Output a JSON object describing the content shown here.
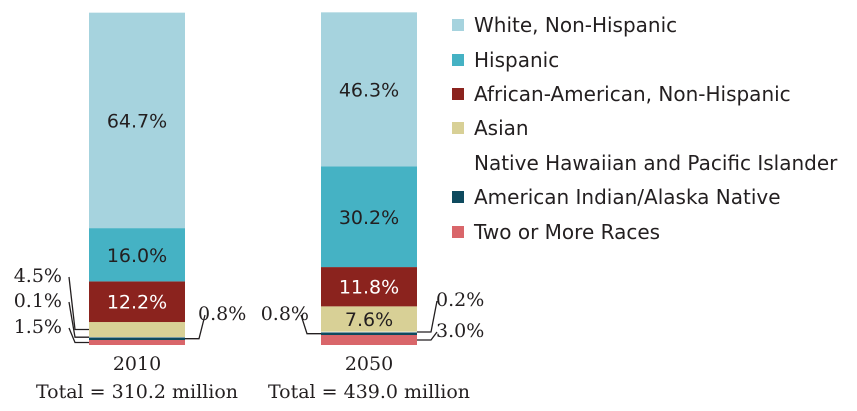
{
  "chart_data": {
    "type": "bar",
    "stacked": true,
    "categories": [
      "2010",
      "2050"
    ],
    "category_labels": [
      {
        "year": "2010",
        "total": "Total = 310.2 million"
      },
      {
        "year": "2050",
        "total": "Total = 439.0 million"
      }
    ],
    "ylim": [
      0,
      100
    ],
    "series": [
      {
        "name": "White, Non-Hispanic",
        "color": "#a6d3de",
        "values": [
          64.7,
          46.3
        ],
        "labels": [
          "64.7%",
          "46.3%"
        ]
      },
      {
        "name": "Hispanic",
        "color": "#45b2c4",
        "values": [
          16.0,
          30.2
        ],
        "labels": [
          "16.0%",
          "30.2%"
        ]
      },
      {
        "name": "African-American, Non-Hispanic",
        "color": "#8b231e",
        "values": [
          12.2,
          11.8
        ],
        "labels": [
          "12.2%",
          "11.8%"
        ]
      },
      {
        "name": "Asian",
        "color": "#d8d096",
        "values": [
          4.5,
          7.6
        ],
        "labels": [
          "4.5%",
          "7.6%"
        ]
      },
      {
        "name": "Native Hawaiian and Pacific Islander",
        "color": "#ffffff",
        "values": [
          0.1,
          0.2
        ],
        "labels": [
          "0.1%",
          "0.2%"
        ]
      },
      {
        "name": "American Indian/Alaska Native",
        "color": "#0e4a5e",
        "values": [
          0.8,
          0.8
        ],
        "labels": [
          "0.8%",
          "0.8%"
        ]
      },
      {
        "name": "Two or More Races",
        "color": "#d9666a",
        "values": [
          1.5,
          3.0
        ],
        "labels": [
          "1.5%",
          "3.0%"
        ]
      }
    ],
    "legend": "right",
    "grid": false
  }
}
